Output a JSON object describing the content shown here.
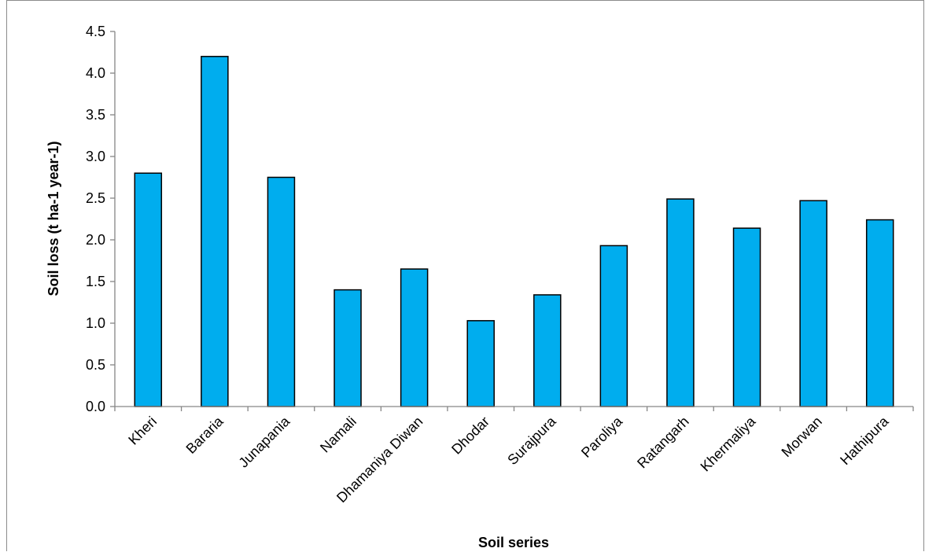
{
  "chart_data": {
    "type": "bar",
    "title": "",
    "xlabel": "Soil series",
    "ylabel": "Soil loss (t ha-1 year-1)",
    "ylim": [
      0,
      4.5
    ],
    "yticks": [
      "0.0",
      "0.5",
      "1.0",
      "1.5",
      "2.0",
      "2.5",
      "3.0",
      "3.5",
      "4.0",
      "4.5"
    ],
    "categories": [
      "Kheri",
      "Bararia",
      "Junapania",
      "Namali",
      "Dhamaniya Diwan",
      "Dhodar",
      "Surajpura",
      "Paroliya",
      "Ratangarh",
      "Khermaliya",
      "Morwan",
      "Hathipura"
    ],
    "values": [
      2.8,
      4.2,
      2.75,
      1.4,
      1.65,
      1.03,
      1.34,
      1.93,
      2.49,
      2.14,
      2.47,
      2.24
    ],
    "grid": false,
    "legend": "none",
    "bar_color": "#00adee",
    "bar_edge_color": "#000000"
  }
}
